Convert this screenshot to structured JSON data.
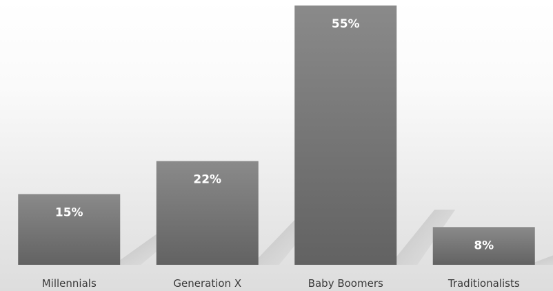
{
  "chart_data": {
    "type": "bar",
    "categories": [
      "Millennials",
      "Generation X",
      "Baby Boomers",
      "Traditionalists"
    ],
    "values": [
      15,
      22,
      55,
      8
    ],
    "data_labels": [
      "15%",
      "22%",
      "55%",
      "8%"
    ],
    "ylim": [
      0,
      55
    ],
    "grid": false,
    "legend": "none",
    "bar_color": "#777777",
    "label_color": "#ffffff",
    "axis_text_color": "#3a3a3a"
  }
}
